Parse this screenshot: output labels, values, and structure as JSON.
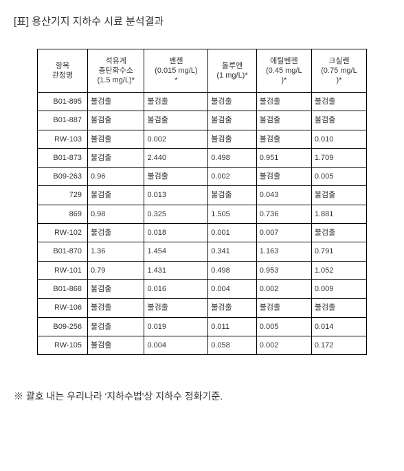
{
  "title": "[표] 용산기지 지하수 시료 분석결과",
  "footnote": "※ 괄호 내는 우리나라 '지하수법'상 지하수 정화기준.",
  "columns": [
    "항목\n관정명",
    "석유계\n총탄화수소\n(1.5 mg/L)*",
    "벤젠\n(0.015 mg/L)\n*",
    "톨루엔\n(1 mg/L)*",
    "에틸벤젠\n(0.45 mg/L\n)*",
    "크실렌\n(0.75 mg/L\n)*"
  ],
  "rows": [
    [
      "B01-895",
      "불검출",
      "불검출",
      "불검출",
      "불검출",
      "불검출"
    ],
    [
      "B01-887",
      "불검출",
      "불검출",
      "불검출",
      "불검출",
      "불검출"
    ],
    [
      "RW-103",
      "불검출",
      "0.002",
      "불검출",
      "불검출",
      "0.010"
    ],
    [
      "B01-873",
      "불검출",
      "2.440",
      "0.498",
      "0.951",
      "1.709"
    ],
    [
      "B09-263",
      "0.96",
      "불검출",
      "0.002",
      "불검출",
      "0.005"
    ],
    [
      "729",
      "불검출",
      "0.013",
      "불검출",
      "0.043",
      "불검출"
    ],
    [
      "869",
      "0.98",
      "0.325",
      "1.505",
      "0.736",
      "1.881"
    ],
    [
      "RW-102",
      "불검출",
      "0.018",
      "0.001",
      "0.007",
      "불검출"
    ],
    [
      "B01-870",
      "1.36",
      "1.454",
      "0.341",
      "1.163",
      "0.791"
    ],
    [
      "RW-101",
      "0.79",
      "1.431",
      "0.498",
      "0.953",
      "1.052"
    ],
    [
      "B01-868",
      "불검출",
      "0.016",
      "0.004",
      "0.002",
      "0.009"
    ],
    [
      "RW-106",
      "불검출",
      "불검출",
      "불검출",
      "불검출",
      "불검출"
    ],
    [
      "B09-256",
      "불검출",
      "0.019",
      "0.011",
      "0.005",
      "0.014"
    ],
    [
      "RW-105",
      "불검출",
      "0.004",
      "0.058",
      "0.002",
      "0.172"
    ]
  ]
}
